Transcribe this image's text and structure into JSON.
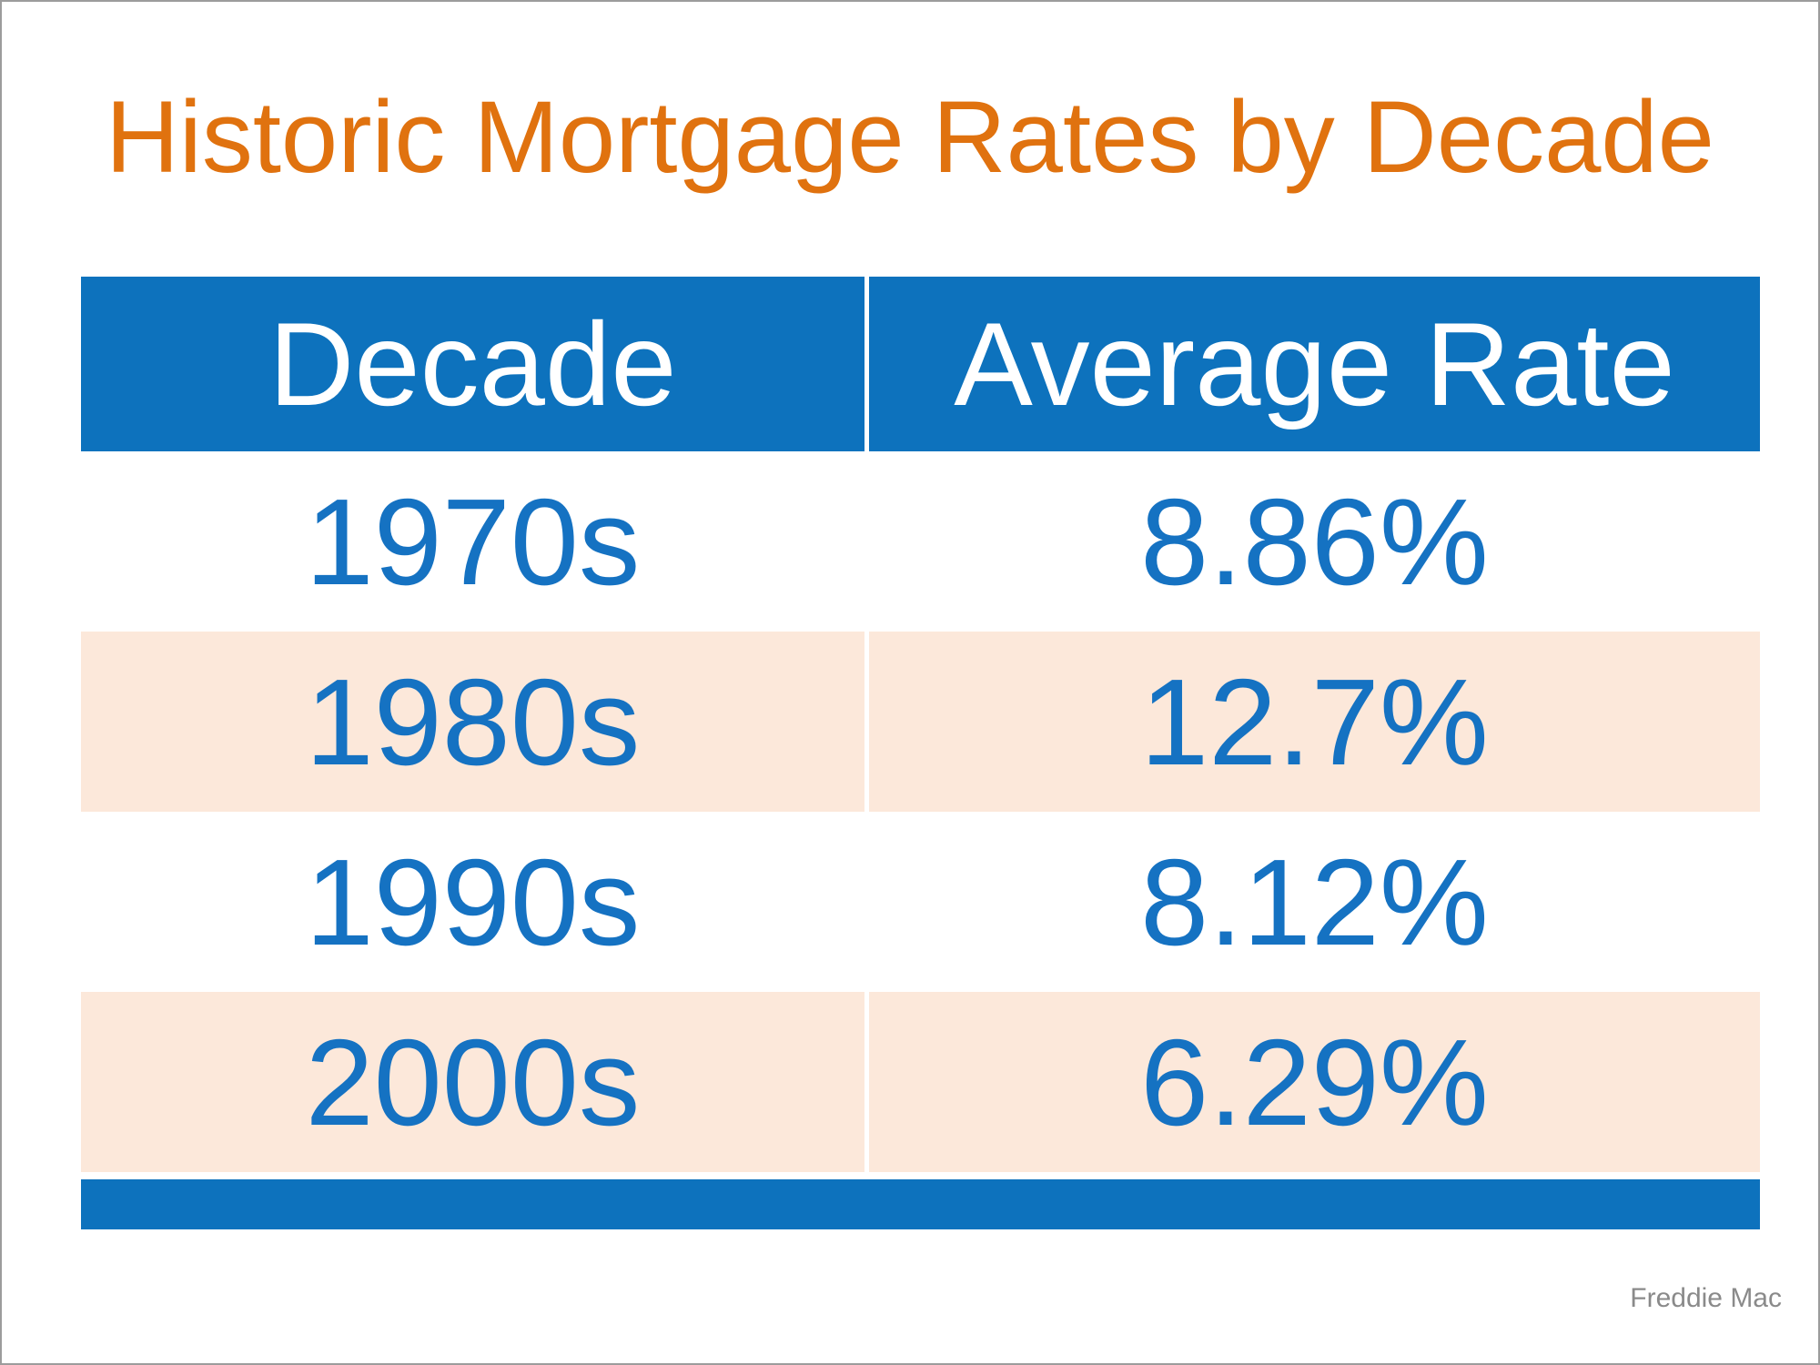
{
  "title": "Historic Mortgage Rates by Decade",
  "source": "Freddie Mac",
  "table": {
    "headers": [
      "Decade",
      "Average Rate"
    ],
    "rows": [
      [
        "1970s",
        "8.86%"
      ],
      [
        "1980s",
        "12.7%"
      ],
      [
        "1990s",
        "8.12%"
      ],
      [
        "2000s",
        "6.29%"
      ]
    ]
  },
  "chart_data": {
    "type": "table",
    "title": "Historic Mortgage Rates by Decade",
    "columns": [
      "Decade",
      "Average Rate"
    ],
    "categories": [
      "1970s",
      "1980s",
      "1990s",
      "2000s"
    ],
    "values_percent": [
      8.86,
      12.7,
      8.12,
      6.29
    ],
    "rows": [
      [
        "1970s",
        "8.86%"
      ],
      [
        "1980s",
        "12.7%"
      ],
      [
        "1990s",
        "8.12%"
      ],
      [
        "2000s",
        "6.29%"
      ]
    ],
    "source": "Freddie Mac",
    "layout_hints": {
      "header_fill": "#0d72bd",
      "alt_row_fill": "#fce8da",
      "row_text_color": "#1572c2",
      "title_color": "#e0720f",
      "striped": true
    }
  },
  "colors": {
    "header_blue": "#0d72bd",
    "data_text_blue": "#1572c2",
    "title_orange": "#e0720f",
    "alt_row_peach": "#fce8da",
    "source_gray": "#8a8a8a",
    "frame_gray": "#9c9c9c"
  }
}
